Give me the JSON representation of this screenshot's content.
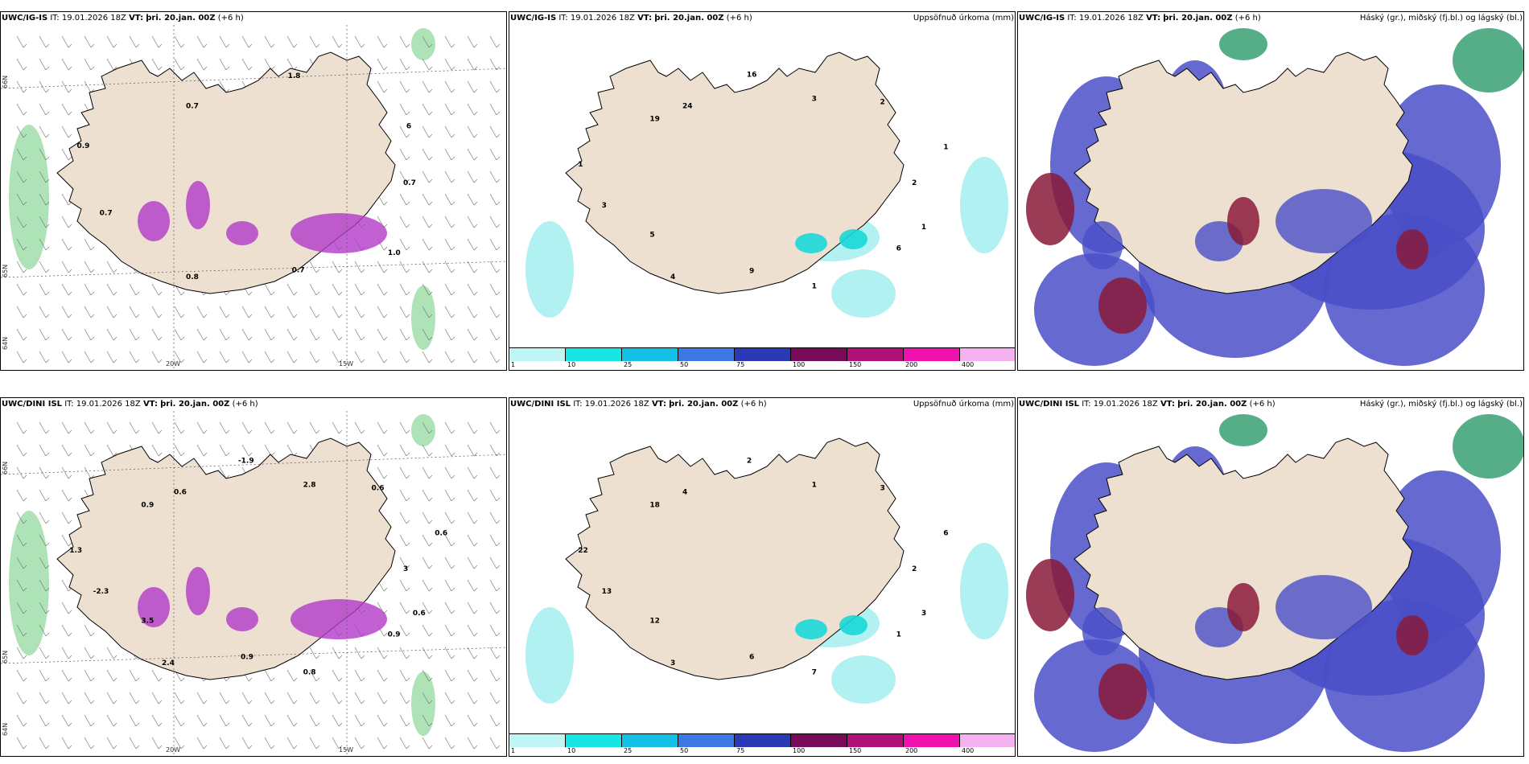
{
  "panels": [
    {
      "id": "p1",
      "model": "UWC/IG-IS",
      "it_label": "IT:",
      "it_value": "19.01.2026 18Z",
      "vt_label": "VT:",
      "vt_value": "þri. 20.jan. 00Z",
      "offset": "(+6 h)",
      "right_title": "",
      "type": "wind-precip",
      "values": [
        {
          "t": "0.7"
        },
        {
          "t": "1.0"
        },
        {
          "t": "0.7"
        },
        {
          "t": "0.8"
        },
        {
          "t": "0.7"
        },
        {
          "t": "0.9"
        },
        {
          "t": "0.7"
        },
        {
          "t": "1.8"
        },
        {
          "t": "6"
        }
      ]
    },
    {
      "id": "p2",
      "model": "UWC/IG-IS",
      "it_label": "IT:",
      "it_value": "19.01.2026 18Z",
      "vt_label": "VT:",
      "vt_value": "þri. 20.jan. 00Z",
      "offset": "(+6 h)",
      "right_title": "Uppsöfnuð úrkoma (mm)",
      "type": "accum",
      "values": [
        {
          "t": "2"
        },
        {
          "t": "1"
        },
        {
          "t": "6"
        },
        {
          "t": "1"
        },
        {
          "t": "9"
        },
        {
          "t": "4"
        },
        {
          "t": "5"
        },
        {
          "t": "3"
        },
        {
          "t": "1"
        },
        {
          "t": "19"
        },
        {
          "t": "24"
        },
        {
          "t": "16"
        },
        {
          "t": "3"
        },
        {
          "t": "2"
        },
        {
          "t": "1"
        }
      ]
    },
    {
      "id": "p3",
      "model": "UWC/IG-IS",
      "it_label": "IT:",
      "it_value": "19.01.2026 18Z",
      "vt_label": "VT:",
      "vt_value": "þri. 20.jan. 00Z",
      "offset": "(+6 h)",
      "right_title": "Háský (gr.), miðský (fj.bl.) og lágský (bl.)",
      "type": "cloud",
      "values": []
    },
    {
      "id": "p4",
      "model": "UWC/DINI ISL",
      "it_label": "IT:",
      "it_value": "19.01.2026 18Z",
      "vt_label": "VT:",
      "vt_value": "þri. 20.jan. 00Z",
      "offset": "(+6 h)",
      "right_title": "",
      "type": "wind-precip",
      "values": [
        {
          "t": "3"
        },
        {
          "t": "0.6"
        },
        {
          "t": "0.9"
        },
        {
          "t": "0.8"
        },
        {
          "t": "0.9"
        },
        {
          "t": "2.4"
        },
        {
          "t": "3.5"
        },
        {
          "t": "-2.3"
        },
        {
          "t": "1.3"
        },
        {
          "t": "0.9"
        },
        {
          "t": "0.6"
        },
        {
          "t": "-1.9"
        },
        {
          "t": "2.8"
        },
        {
          "t": "0.6"
        },
        {
          "t": "0.6"
        }
      ]
    },
    {
      "id": "p5",
      "model": "UWC/DINI ISL",
      "it_label": "IT:",
      "it_value": "19.01.2026 18Z",
      "vt_label": "VT:",
      "vt_value": "þri. 20.jan. 00Z",
      "offset": "(+6 h)",
      "right_title": "Uppsöfnuð úrkoma (mm)",
      "type": "accum",
      "values": [
        {
          "t": "2"
        },
        {
          "t": "3"
        },
        {
          "t": "1"
        },
        {
          "t": "7"
        },
        {
          "t": "6"
        },
        {
          "t": "3"
        },
        {
          "t": "12"
        },
        {
          "t": "13"
        },
        {
          "t": "22"
        },
        {
          "t": "18"
        },
        {
          "t": "4"
        },
        {
          "t": "2"
        },
        {
          "t": "1"
        },
        {
          "t": "3"
        },
        {
          "t": "6"
        }
      ]
    },
    {
      "id": "p6",
      "model": "UWC/DINI ISL",
      "it_label": "IT:",
      "it_value": "19.01.2026 18Z",
      "vt_label": "VT:",
      "vt_value": "þri. 20.jan. 00Z",
      "offset": "(+6 h)",
      "right_title": "Háský (gr.), miðský (fj.bl.) og lágský (bl.)",
      "type": "cloud",
      "values": []
    }
  ],
  "colorbar": {
    "labels": [
      "1",
      "10",
      "25",
      "50",
      "75",
      "100",
      "150",
      "200",
      "400"
    ],
    "colors": [
      "#bff5f5",
      "#18e6e6",
      "#15c0e6",
      "#3c78e6",
      "#2a3ab4",
      "#7a0a5a",
      "#b0107a",
      "#f010b0",
      "#f5b0f0"
    ]
  },
  "gridlabels": {
    "lon1": "20W",
    "lon2": "15W",
    "lat1": "66N",
    "lat2": "65N",
    "lat3": "64N"
  },
  "colors": {
    "land": "#ede0d0",
    "coast": "#000000",
    "precip_light": "#a8f0f0",
    "cloud_low": "#4a4fc8",
    "cloud_mid": "#8a1a3a",
    "cloud_high": "#2a9a6a"
  }
}
